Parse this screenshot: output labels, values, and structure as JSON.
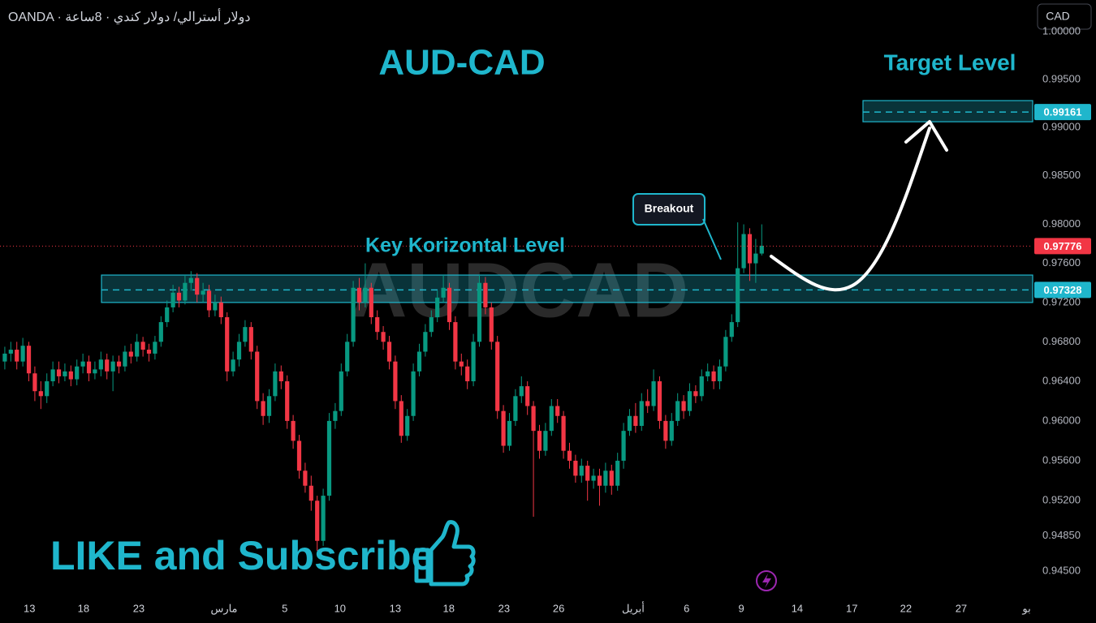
{
  "chart_data": {
    "type": "candlestick",
    "title": "AUD-CAD",
    "header": "OANDA · دولار أسترالي/ دولار كندي · 8ساعة",
    "watermark": "AUDCAD",
    "currency": "CAD",
    "up_color": "#089981",
    "down_color": "#f23645",
    "accent_color": "#1fb6cc",
    "log": true,
    "ylim": [
      0.94227,
      1.00333
    ],
    "yticks": [
      {
        "value": 1,
        "label": "1.00000"
      },
      {
        "value": 0.995,
        "label": "0.99500"
      },
      {
        "value": 0.99,
        "label": "0.99000"
      },
      {
        "value": 0.985,
        "label": "0.98500"
      },
      {
        "value": 0.98,
        "label": "0.98000"
      },
      {
        "value": 0.976,
        "label": "0.97600"
      },
      {
        "value": 0.972,
        "label": "0.97200"
      },
      {
        "value": 0.968,
        "label": "0.96800"
      },
      {
        "value": 0.964,
        "label": "0.96400"
      },
      {
        "value": 0.96,
        "label": "0.96000"
      },
      {
        "value": 0.956,
        "label": "0.95600"
      },
      {
        "value": 0.952,
        "label": "0.95200"
      },
      {
        "value": 0.9485,
        "label": "0.94850"
      },
      {
        "value": 0.945,
        "label": "0.94500"
      }
    ],
    "xlim": [
      -0.8,
      171.1
    ],
    "xticks": [
      {
        "value": 4.1,
        "label": "13"
      },
      {
        "value": 13.1,
        "label": "18"
      },
      {
        "value": 22.3,
        "label": "23"
      },
      {
        "value": 36.5,
        "label": "مارس"
      },
      {
        "value": 46.6,
        "label": "5"
      },
      {
        "value": 55.8,
        "label": "10"
      },
      {
        "value": 65,
        "label": "13"
      },
      {
        "value": 73.9,
        "label": "18"
      },
      {
        "value": 83.1,
        "label": "23"
      },
      {
        "value": 92.2,
        "label": "26"
      },
      {
        "value": 104.6,
        "label": "أبريل"
      },
      {
        "value": 113.5,
        "label": "6"
      },
      {
        "value": 122.6,
        "label": "9"
      },
      {
        "value": 131.9,
        "label": "14"
      },
      {
        "value": 141,
        "label": "17"
      },
      {
        "value": 150,
        "label": "22"
      },
      {
        "value": 159.2,
        "label": "27"
      },
      {
        "value": 170.1,
        "label": "بو"
      }
    ],
    "open": [
      0.966,
      0.9668,
      0.9672,
      0.966,
      0.9676,
      0.9648,
      0.963,
      0.9625,
      0.964,
      0.9652,
      0.9645,
      0.965,
      0.9642,
      0.9655,
      0.966,
      0.9648,
      0.9652,
      0.9662,
      0.965,
      0.966,
      0.9655,
      0.967,
      0.9665,
      0.968,
      0.9672,
      0.9668,
      0.968,
      0.97,
      0.9715,
      0.973,
      0.9722,
      0.974,
      0.9745,
      0.9728,
      0.9732,
      0.9712,
      0.972,
      0.9705,
      0.965,
      0.9662,
      0.968,
      0.9695,
      0.967,
      0.962,
      0.9605,
      0.9625,
      0.965,
      0.964,
      0.96,
      0.958,
      0.955,
      0.9535,
      0.952,
      0.948,
      0.9525,
      0.96,
      0.961,
      0.965,
      0.968,
      0.9735,
      0.972,
      0.9735,
      0.9705,
      0.969,
      0.968,
      0.966,
      0.962,
      0.9585,
      0.9605,
      0.965,
      0.967,
      0.969,
      0.9705,
      0.9725,
      0.9735,
      0.97,
      0.966,
      0.9655,
      0.964,
      0.968,
      0.974,
      0.9715,
      0.968,
      0.961,
      0.9575,
      0.96,
      0.9625,
      0.9635,
      0.9615,
      0.959,
      0.957,
      0.959,
      0.9615,
      0.9605,
      0.957,
      0.956,
      0.9545,
      0.9555,
      0.954,
      0.9545,
      0.9535,
      0.955,
      0.9535,
      0.956,
      0.959,
      0.9605,
      0.9595,
      0.962,
      0.9615,
      0.964,
      0.96,
      0.958,
      0.96,
      0.962,
      0.961,
      0.963,
      0.9625,
      0.9645,
      0.965,
      0.964,
      0.9655,
      0.9685,
      0.97,
      0.9755,
      0.979,
      0.976,
      0.977
    ],
    "high": [
      0.9675,
      0.968,
      0.968,
      0.9684,
      0.968,
      0.9655,
      0.964,
      0.9648,
      0.966,
      0.966,
      0.9658,
      0.9656,
      0.9662,
      0.9668,
      0.9666,
      0.966,
      0.967,
      0.9668,
      0.9666,
      0.9666,
      0.9676,
      0.9678,
      0.9688,
      0.9685,
      0.9678,
      0.9686,
      0.9706,
      0.9722,
      0.9738,
      0.9736,
      0.9748,
      0.9752,
      0.975,
      0.974,
      0.9738,
      0.9728,
      0.9726,
      0.971,
      0.967,
      0.9688,
      0.9702,
      0.97,
      0.9676,
      0.9628,
      0.9632,
      0.9658,
      0.9656,
      0.9646,
      0.9606,
      0.9586,
      0.9558,
      0.9545,
      0.9525,
      0.9532,
      0.9608,
      0.9618,
      0.9658,
      0.9688,
      0.9742,
      0.9745,
      0.976,
      0.974,
      0.9712,
      0.9696,
      0.9686,
      0.9666,
      0.9626,
      0.9612,
      0.9658,
      0.9678,
      0.9698,
      0.9712,
      0.9732,
      0.9748,
      0.974,
      0.9706,
      0.9668,
      0.9662,
      0.9688,
      0.9748,
      0.9746,
      0.972,
      0.9686,
      0.9616,
      0.9608,
      0.9632,
      0.9645,
      0.964,
      0.962,
      0.9596,
      0.9598,
      0.9622,
      0.9622,
      0.961,
      0.9578,
      0.9566,
      0.9562,
      0.956,
      0.9552,
      0.9552,
      0.9558,
      0.9556,
      0.9568,
      0.9598,
      0.9612,
      0.9618,
      0.9628,
      0.9632,
      0.9652,
      0.9645,
      0.9606,
      0.9608,
      0.9628,
      0.9626,
      0.9638,
      0.9636,
      0.9652,
      0.9658,
      0.9656,
      0.9662,
      0.9692,
      0.9708,
      0.9802,
      0.98,
      0.9796,
      0.9785,
      0.98
    ],
    "low": [
      0.9652,
      0.966,
      0.9652,
      0.9655,
      0.964,
      0.962,
      0.9612,
      0.9618,
      0.9635,
      0.9638,
      0.964,
      0.9635,
      0.9636,
      0.9648,
      0.964,
      0.9642,
      0.9645,
      0.9642,
      0.963,
      0.9648,
      0.965,
      0.9658,
      0.966,
      0.9665,
      0.966,
      0.9662,
      0.9675,
      0.9695,
      0.971,
      0.9715,
      0.9718,
      0.9732,
      0.972,
      0.972,
      0.9705,
      0.9706,
      0.9698,
      0.964,
      0.9645,
      0.9655,
      0.9675,
      0.9662,
      0.9612,
      0.9596,
      0.9598,
      0.962,
      0.9632,
      0.9592,
      0.9572,
      0.9542,
      0.9528,
      0.951,
      0.947,
      0.9475,
      0.952,
      0.9592,
      0.9605,
      0.9645,
      0.9675,
      0.9712,
      0.9715,
      0.9698,
      0.9682,
      0.9672,
      0.9652,
      0.9612,
      0.9578,
      0.958,
      0.96,
      0.9645,
      0.9665,
      0.9685,
      0.97,
      0.972,
      0.9692,
      0.9652,
      0.9646,
      0.9632,
      0.9635,
      0.9675,
      0.9708,
      0.9672,
      0.9602,
      0.9568,
      0.957,
      0.9595,
      0.9618,
      0.9606,
      0.9504,
      0.9562,
      0.9565,
      0.9585,
      0.9598,
      0.9562,
      0.9552,
      0.9538,
      0.9538,
      0.952,
      0.9532,
      0.9515,
      0.9528,
      0.9526,
      0.953,
      0.9552,
      0.9585,
      0.9588,
      0.959,
      0.9608,
      0.961,
      0.9592,
      0.9572,
      0.9575,
      0.9595,
      0.9602,
      0.9605,
      0.9618,
      0.962,
      0.964,
      0.9632,
      0.9632,
      0.965,
      0.968,
      0.9695,
      0.975,
      0.9742,
      0.974,
      0.9768
    ],
    "close": [
      0.9668,
      0.9672,
      0.966,
      0.9676,
      0.9648,
      0.963,
      0.9625,
      0.964,
      0.9652,
      0.9645,
      0.965,
      0.9642,
      0.9655,
      0.966,
      0.9648,
      0.9652,
      0.9662,
      0.965,
      0.966,
      0.9655,
      0.967,
      0.9665,
      0.968,
      0.9672,
      0.9668,
      0.968,
      0.97,
      0.9715,
      0.973,
      0.9722,
      0.974,
      0.9745,
      0.9728,
      0.9732,
      0.9712,
      0.972,
      0.9705,
      0.965,
      0.9662,
      0.968,
      0.9695,
      0.967,
      0.962,
      0.9605,
      0.9625,
      0.965,
      0.964,
      0.96,
      0.958,
      0.955,
      0.9535,
      0.952,
      0.948,
      0.9525,
      0.96,
      0.961,
      0.965,
      0.968,
      0.9735,
      0.972,
      0.9735,
      0.9705,
      0.969,
      0.968,
      0.966,
      0.962,
      0.9585,
      0.9605,
      0.965,
      0.967,
      0.969,
      0.9705,
      0.9725,
      0.9735,
      0.97,
      0.966,
      0.9655,
      0.964,
      0.968,
      0.974,
      0.9715,
      0.968,
      0.961,
      0.9575,
      0.96,
      0.9625,
      0.9635,
      0.9615,
      0.959,
      0.957,
      0.959,
      0.9615,
      0.9605,
      0.957,
      0.956,
      0.9545,
      0.9555,
      0.954,
      0.9545,
      0.9535,
      0.955,
      0.9535,
      0.956,
      0.959,
      0.9605,
      0.9595,
      0.962,
      0.9615,
      0.964,
      0.96,
      0.958,
      0.96,
      0.962,
      0.961,
      0.963,
      0.9625,
      0.9645,
      0.965,
      0.964,
      0.9655,
      0.9685,
      0.97,
      0.9755,
      0.979,
      0.976,
      0.977,
      0.9778
    ],
    "key_level": {
      "text": "Key Korizontal Level",
      "value": 0.97328,
      "label": "0.97328",
      "zone": [
        0.972,
        0.9748
      ]
    },
    "target_level": {
      "text": "Target Level",
      "value": 0.99161,
      "label": "0.99161",
      "zone": [
        0.9906,
        0.9928
      ]
    },
    "last_price": {
      "value": 0.97776,
      "label": "0.97776",
      "color": "#f23645"
    },
    "breakout": "Breakout",
    "cta": "LIKE and Subscribe"
  }
}
